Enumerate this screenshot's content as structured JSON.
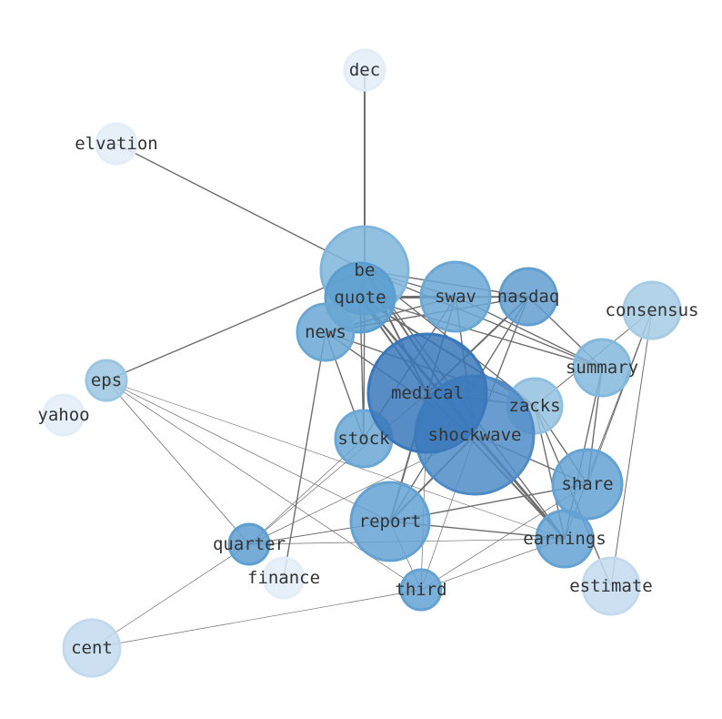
{
  "nodes": [
    {
      "id": "dec",
      "label": "dec",
      "color": "#e3edf8"
    },
    {
      "id": "elvation",
      "label": "elvation",
      "color": "#e3edf8"
    },
    {
      "id": "be",
      "label": "be",
      "color": "#7fb5da"
    },
    {
      "id": "quote",
      "label": "quote",
      "color": "#5b9dd0"
    },
    {
      "id": "swav",
      "label": "swav",
      "color": "#6aa7d4"
    },
    {
      "id": "nasdaq",
      "label": "nasdaq",
      "color": "#619fd0"
    },
    {
      "id": "consensus",
      "label": "consensus",
      "color": "#a6cbe5"
    },
    {
      "id": "news",
      "label": "news",
      "color": "#6aa7d4"
    },
    {
      "id": "eps",
      "label": "eps",
      "color": "#9ac6e2"
    },
    {
      "id": "yahoo",
      "label": "yahoo",
      "color": "#e3edf8"
    },
    {
      "id": "zacks",
      "label": "zacks",
      "color": "#92c1e0"
    },
    {
      "id": "summary",
      "label": "summary",
      "color": "#84b9dd"
    },
    {
      "id": "stock",
      "label": "stock",
      "color": "#6aa7d4"
    },
    {
      "id": "shockwave",
      "label": "shockwave",
      "color": "#4f8cc7"
    },
    {
      "id": "medical",
      "label": "medical",
      "color": "#3a78bb"
    },
    {
      "id": "share",
      "label": "share",
      "color": "#63a2d2"
    },
    {
      "id": "report",
      "label": "report",
      "color": "#63a2d2"
    },
    {
      "id": "earnings",
      "label": "earnings",
      "color": "#63a2d2"
    },
    {
      "id": "quarter",
      "label": "quarter",
      "color": "#5e9ed0"
    },
    {
      "id": "finance",
      "label": "finance",
      "color": "#e3edf8"
    },
    {
      "id": "third",
      "label": "third",
      "color": "#63a2d2"
    },
    {
      "id": "estimate",
      "label": "estimate",
      "color": "#c3daee"
    },
    {
      "id": "cent",
      "label": "cent",
      "color": "#c3daee"
    }
  ],
  "edges": [
    [
      "dec",
      "be",
      2
    ],
    [
      "elvation",
      "be",
      1.4
    ],
    [
      "eps",
      "be",
      1.4
    ],
    [
      "eps",
      "quarter",
      0.8
    ],
    [
      "eps",
      "report",
      0.7
    ],
    [
      "eps",
      "third",
      0.7
    ],
    [
      "eps",
      "earnings",
      0.6
    ],
    [
      "consensus",
      "zacks",
      1
    ],
    [
      "consensus",
      "share",
      1
    ],
    [
      "consensus",
      "estimate",
      1
    ],
    [
      "consensus",
      "earnings",
      1
    ],
    [
      "cent",
      "quarter",
      0.7
    ],
    [
      "cent",
      "third",
      0.7
    ],
    [
      "quarter",
      "report",
      1
    ],
    [
      "quarter",
      "earnings",
      0.7
    ],
    [
      "quarter",
      "shockwave",
      0.7
    ],
    [
      "quarter",
      "medical",
      0.7
    ],
    [
      "quarter",
      "stock",
      0.7
    ],
    [
      "finance",
      "news",
      1.4
    ],
    [
      "third",
      "report",
      0.7
    ],
    [
      "third",
      "medical",
      0.7
    ],
    [
      "third",
      "shockwave",
      0.7
    ],
    [
      "third",
      "earnings",
      0.7
    ],
    [
      "third",
      "share",
      0.7
    ],
    [
      "be",
      "quote",
      2
    ],
    [
      "be",
      "swav",
      1.4
    ],
    [
      "be",
      "nasdaq",
      1.4
    ],
    [
      "be",
      "medical",
      2
    ],
    [
      "be",
      "shockwave",
      2
    ],
    [
      "be",
      "stock",
      1.4
    ],
    [
      "be",
      "zacks",
      1.4
    ],
    [
      "be",
      "summary",
      1.4
    ],
    [
      "be",
      "earnings",
      1.4
    ],
    [
      "quote",
      "swav",
      3
    ],
    [
      "quote",
      "nasdaq",
      2
    ],
    [
      "quote",
      "medical",
      2
    ],
    [
      "quote",
      "shockwave",
      2
    ],
    [
      "quote",
      "zacks",
      2
    ],
    [
      "quote",
      "earnings",
      2
    ],
    [
      "quote",
      "stock",
      1.4
    ],
    [
      "quote",
      "summary",
      1.4
    ],
    [
      "news",
      "swav",
      1.4
    ],
    [
      "news",
      "nasdaq",
      1.4
    ],
    [
      "news",
      "zacks",
      1.4
    ],
    [
      "news",
      "shockwave",
      1.4
    ],
    [
      "news",
      "stock",
      1.4
    ],
    [
      "swav",
      "medical",
      1.4
    ],
    [
      "swav",
      "shockwave",
      1.4
    ],
    [
      "swav",
      "summary",
      1.4
    ],
    [
      "swav",
      "report",
      1.4
    ],
    [
      "swav",
      "stock",
      1.4
    ],
    [
      "nasdaq",
      "medical",
      2
    ],
    [
      "nasdaq",
      "shockwave",
      1.4
    ],
    [
      "nasdaq",
      "summary",
      1.4
    ],
    [
      "nasdaq",
      "report",
      1.4
    ],
    [
      "zacks",
      "share",
      1.4
    ],
    [
      "zacks",
      "earnings",
      1.4
    ],
    [
      "zacks",
      "estimate",
      1.4
    ],
    [
      "zacks",
      "medical",
      1.4
    ],
    [
      "summary",
      "share",
      1.4
    ],
    [
      "summary",
      "earnings",
      1.4
    ],
    [
      "medical",
      "report",
      2
    ],
    [
      "medical",
      "earnings",
      2
    ],
    [
      "shockwave",
      "report",
      2
    ],
    [
      "shockwave",
      "earnings",
      2
    ],
    [
      "shockwave",
      "share",
      1.4
    ],
    [
      "report",
      "earnings",
      1.4
    ],
    [
      "report",
      "share",
      1.4
    ]
  ]
}
